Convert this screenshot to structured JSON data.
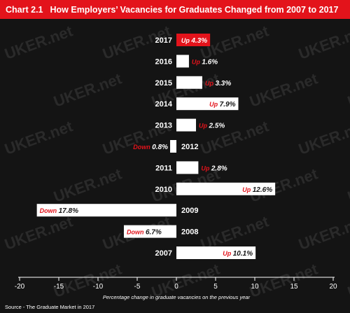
{
  "header": {
    "chart_number": "Chart 2.1",
    "title": "How Employers’ Vacancies for Graduates Changed from 2007 to 2017"
  },
  "source": "Source - The Graduate Market in 2017",
  "watermark": "UKER.net",
  "colors": {
    "title_bar": "#e3131b",
    "background": "#141414",
    "bar": "#ffffff",
    "highlight_bar": "#e3131b",
    "label_accent": "#e3131b",
    "text": "#ffffff"
  },
  "chart_data": {
    "type": "bar",
    "orientation": "horizontal",
    "title": "How Employers’ Vacancies for Graduates Changed from 2007 to 2017",
    "xlabel": "Percentage change in graduate vacancies on the previous year",
    "ylabel": "",
    "xlim": [
      -20,
      20
    ],
    "xticks": [
      -20,
      -15,
      -10,
      -5,
      0,
      5,
      10,
      15,
      20
    ],
    "grid": false,
    "categories": [
      "2017",
      "2016",
      "2015",
      "2014",
      "2013",
      "2012",
      "2011",
      "2010",
      "2009",
      "2008",
      "2007"
    ],
    "values": [
      4.3,
      1.6,
      3.3,
      7.9,
      2.5,
      -0.8,
      2.8,
      12.6,
      -17.8,
      -6.7,
      10.1
    ],
    "value_labels": [
      "4.3%",
      "1.6%",
      "3.3%",
      "7.9%",
      "2.5%",
      "0.8%",
      "2.8%",
      "12.6%",
      "17.8%",
      "6.7%",
      "10.1%"
    ],
    "direction_labels": [
      "Up",
      "Up",
      "Up",
      "Up",
      "Up",
      "Down",
      "Up",
      "Up",
      "Down",
      "Down",
      "Up"
    ],
    "highlight_index": 0
  }
}
